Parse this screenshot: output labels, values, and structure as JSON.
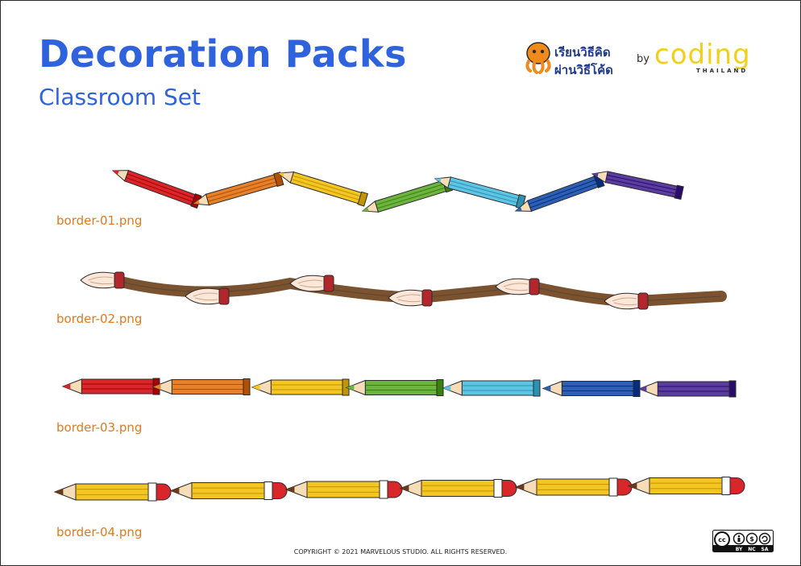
{
  "header": {
    "title": "Decoration Packs",
    "subtitle": "Classroom Set"
  },
  "logo": {
    "thai_line_1": "เรียนวิธีคิด",
    "thai_line_2": "ผ่านวิธีโค้ด",
    "by": "by",
    "brand": "coding",
    "brand_sub": "THAILAND"
  },
  "borders": [
    {
      "label": "border-01.png",
      "motif": "zigzag-pencils"
    },
    {
      "label": "border-02.png",
      "motif": "paintbrush-wave"
    },
    {
      "label": "border-03.png",
      "motif": "straight-pencil-chain"
    },
    {
      "label": "border-04.png",
      "motif": "yellow-pencil-chain"
    }
  ],
  "colors": {
    "title": "#2f63dd",
    "label": "#e07a1c",
    "pencil_palette": [
      "#d9262b",
      "#e5812a",
      "#f3c623",
      "#6db33f",
      "#5ec4e3",
      "#2f5fb3",
      "#5a3d9e"
    ],
    "yellow_pencil": "#f3c623",
    "brush_handle": "#7a5230",
    "brush_ferrule": "#b3262b"
  },
  "footer": {
    "copyright": "COPYRIGHT © 2021 MARVELOUS STUDIO. ALL RIGHTS RESERVED.",
    "license": {
      "by": "BY",
      "nc": "NC",
      "sa": "SA"
    }
  }
}
